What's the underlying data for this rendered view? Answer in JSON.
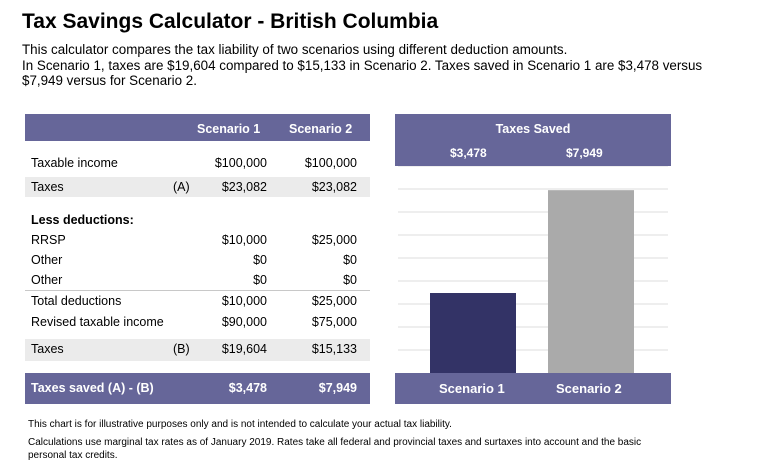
{
  "title": "Tax Savings Calculator - British Columbia",
  "intro": {
    "line1": "This calculator compares the tax liability of two scenarios using different deduction amounts.",
    "line2": "In Scenario 1, taxes are $19,604 compared to $15,133 in Scenario 2. Taxes saved in Scenario 1 are $3,478 versus $7,949 versus for Scenario 2."
  },
  "table": {
    "col1": "Scenario 1",
    "col2": "Scenario 2",
    "rows": [
      {
        "label": "Taxable income",
        "mark": "",
        "s1": "$100,000",
        "s2": "$100,000"
      },
      {
        "label": "Taxes",
        "mark": "(A)",
        "s1": "$23,082",
        "s2": "$23,082"
      },
      {
        "label": "Less deductions:",
        "mark": "",
        "s1": "",
        "s2": ""
      },
      {
        "label": "RRSP",
        "mark": "",
        "s1": "$10,000",
        "s2": "$25,000"
      },
      {
        "label": "Other",
        "mark": "",
        "s1": "$0",
        "s2": "$0"
      },
      {
        "label": "Other",
        "mark": "",
        "s1": "$0",
        "s2": "$0"
      },
      {
        "label": "Total deductions",
        "mark": "",
        "s1": "$10,000",
        "s2": "$25,000"
      },
      {
        "label": "Revised taxable income",
        "mark": "",
        "s1": "$90,000",
        "s2": "$75,000"
      },
      {
        "label": "Taxes",
        "mark": "(B)",
        "s1": "$19,604",
        "s2": "$15,133"
      }
    ],
    "footer": {
      "label": "Taxes saved (A) - (B)",
      "s1": "$3,478",
      "s2": "$7,949"
    }
  },
  "chart_data": {
    "type": "bar",
    "title": "Taxes Saved",
    "categories": [
      "Scenario 1",
      "Scenario 2"
    ],
    "values": [
      3478,
      7949
    ],
    "value_labels": [
      "$3,478",
      "$7,949"
    ],
    "colors": [
      "#333366",
      "#aaaaaa"
    ],
    "ylim": [
      0,
      9000
    ],
    "grid": true
  },
  "notes": {
    "line1": "This chart is for illustrative purposes only and is not intended to calculate your actual tax liability.",
    "line2": "Calculations use marginal tax rates as of January 2019. Rates take all federal and provincial taxes and surtaxes into account and the basic personal tax credits."
  }
}
